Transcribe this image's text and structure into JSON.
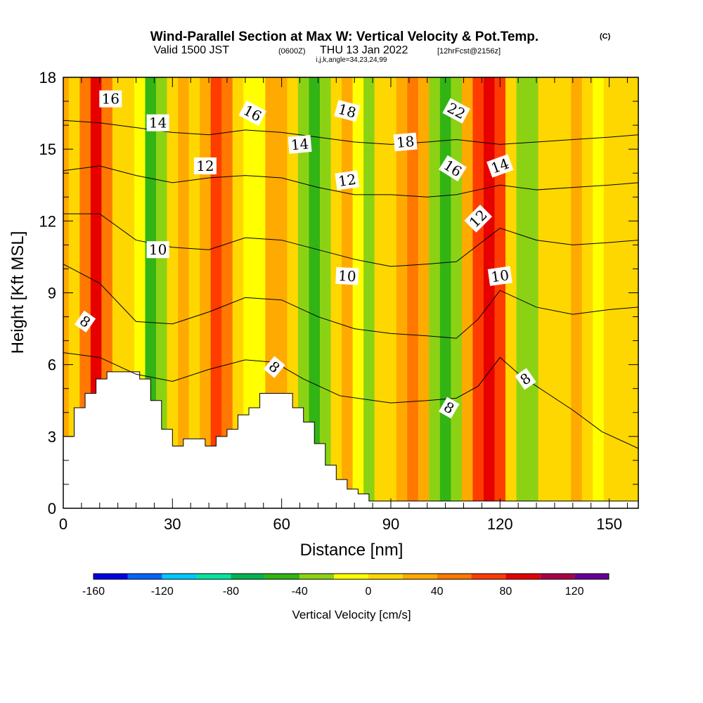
{
  "chart_data": {
    "type": "heatmap",
    "title": "Wind-Parallel Section at Max W: Vertical Velocity & Pot.Temp.",
    "title_mark": "(C)",
    "subtitle_parts": [
      "Valid 1500 JST",
      "(0600Z)",
      "THU 13 Jan 2022",
      "[12hrFcst@2156z]"
    ],
    "subtitle2": "i,j,k,angle=34,23,24,99",
    "xlabel": "Distance [nm]",
    "ylabel": "Height [Kft MSL]",
    "xlim": [
      0,
      158
    ],
    "ylim": [
      0,
      18
    ],
    "x_ticks": [
      0,
      30,
      60,
      90,
      120,
      150
    ],
    "y_ticks": [
      0,
      3,
      6,
      9,
      12,
      15,
      18
    ],
    "colorbar": {
      "label": "Vertical Velocity [cm/s]",
      "tick_values": [
        -160,
        -120,
        -80,
        -40,
        0,
        40,
        80,
        120
      ],
      "tick_labels": [
        "-160",
        "-120",
        "-80",
        "-40",
        "0",
        "40",
        "80",
        "120"
      ],
      "bins": [
        -160,
        -140,
        -120,
        -100,
        -80,
        -60,
        -40,
        -20,
        0,
        20,
        40,
        60,
        80,
        100,
        120,
        140
      ],
      "colors": [
        "#0000e6",
        "#0064ff",
        "#00c8ff",
        "#00e6a0",
        "#00b450",
        "#32b414",
        "#8cd214",
        "#ffff00",
        "#ffd700",
        "#ffaa00",
        "#ff7800",
        "#ff3c00",
        "#e60000",
        "#aa0046",
        "#640096"
      ]
    },
    "velocity_columns": [
      {
        "x": 0,
        "w": 20
      },
      {
        "x": 3,
        "w": 10
      },
      {
        "x": 6,
        "w": 50
      },
      {
        "x": 9,
        "w": 85
      },
      {
        "x": 12,
        "w": 40
      },
      {
        "x": 15,
        "w": 10
      },
      {
        "x": 18,
        "w": 5
      },
      {
        "x": 21,
        "w": -20
      },
      {
        "x": 24,
        "w": -50
      },
      {
        "x": 27,
        "w": -30
      },
      {
        "x": 30,
        "w": 10
      },
      {
        "x": 33,
        "w": 20
      },
      {
        "x": 36,
        "w": 10
      },
      {
        "x": 39,
        "w": 30
      },
      {
        "x": 42,
        "w": 65
      },
      {
        "x": 45,
        "w": 50
      },
      {
        "x": 48,
        "w": 10
      },
      {
        "x": 51,
        "w": -20
      },
      {
        "x": 54,
        "w": -10
      },
      {
        "x": 57,
        "w": 20
      },
      {
        "x": 60,
        "w": 30
      },
      {
        "x": 63,
        "w": 10
      },
      {
        "x": 66,
        "w": -30
      },
      {
        "x": 69,
        "w": -60
      },
      {
        "x": 72,
        "w": -30
      },
      {
        "x": 75,
        "w": 10
      },
      {
        "x": 78,
        "w": 30
      },
      {
        "x": 81,
        "w": -10
      },
      {
        "x": 84,
        "w": -30
      },
      {
        "x": 87,
        "w": 5
      },
      {
        "x": 90,
        "w": 10
      },
      {
        "x": 93,
        "w": 30
      },
      {
        "x": 96,
        "w": 45
      },
      {
        "x": 99,
        "w": 20
      },
      {
        "x": 102,
        "w": -40
      },
      {
        "x": 105,
        "w": -60
      },
      {
        "x": 108,
        "w": -30
      },
      {
        "x": 111,
        "w": 20
      },
      {
        "x": 114,
        "w": 60
      },
      {
        "x": 117,
        "w": 95
      },
      {
        "x": 120,
        "w": 60
      },
      {
        "x": 123,
        "w": 10
      },
      {
        "x": 126,
        "w": -40
      },
      {
        "x": 129,
        "w": -30
      },
      {
        "x": 132,
        "w": 5
      },
      {
        "x": 135,
        "w": 15
      },
      {
        "x": 138,
        "w": 10
      },
      {
        "x": 141,
        "w": 25
      },
      {
        "x": 144,
        "w": 15
      },
      {
        "x": 147,
        "w": -5
      },
      {
        "x": 150,
        "w": 5
      },
      {
        "x": 153,
        "w": 10
      },
      {
        "x": 156,
        "w": 15
      },
      {
        "x": 158,
        "w": 10
      }
    ],
    "terrain": [
      {
        "x": 0,
        "z": 3
      },
      {
        "x": 3,
        "z": 4.2
      },
      {
        "x": 6,
        "z": 4.8
      },
      {
        "x": 9,
        "z": 5.4
      },
      {
        "x": 12,
        "z": 5.7
      },
      {
        "x": 18,
        "z": 5.7
      },
      {
        "x": 21,
        "z": 5.4
      },
      {
        "x": 24,
        "z": 4.5
      },
      {
        "x": 27,
        "z": 3.3
      },
      {
        "x": 30,
        "z": 2.6
      },
      {
        "x": 33,
        "z": 2.9
      },
      {
        "x": 36,
        "z": 2.9
      },
      {
        "x": 39,
        "z": 2.6
      },
      {
        "x": 42,
        "z": 3
      },
      {
        "x": 45,
        "z": 3.3
      },
      {
        "x": 48,
        "z": 3.9
      },
      {
        "x": 51,
        "z": 4.2
      },
      {
        "x": 54,
        "z": 4.8
      },
      {
        "x": 60,
        "z": 4.8
      },
      {
        "x": 63,
        "z": 4.2
      },
      {
        "x": 66,
        "z": 3.6
      },
      {
        "x": 69,
        "z": 2.7
      },
      {
        "x": 72,
        "z": 1.8
      },
      {
        "x": 75,
        "z": 1.2
      },
      {
        "x": 78,
        "z": 0.8
      },
      {
        "x": 81,
        "z": 0.6
      },
      {
        "x": 84,
        "z": 0.3
      },
      {
        "x": 158,
        "z": 0.3
      }
    ],
    "isentropes": [
      {
        "value": 8,
        "points": [
          [
            0,
            6.5
          ],
          [
            10,
            6.3
          ],
          [
            20,
            5.6
          ],
          [
            30,
            5.3
          ],
          [
            40,
            5.8
          ],
          [
            50,
            6.2
          ],
          [
            58,
            6.1
          ],
          [
            66,
            5.4
          ],
          [
            76,
            4.7
          ],
          [
            90,
            4.4
          ],
          [
            100,
            4.5
          ],
          [
            108,
            4.6
          ],
          [
            114,
            5.1
          ],
          [
            120,
            6.3
          ],
          [
            126,
            5.5
          ],
          [
            132,
            4.9
          ],
          [
            140,
            4.1
          ],
          [
            148,
            3.2
          ],
          [
            158,
            2.5
          ]
        ]
      },
      {
        "value": 10,
        "points": [
          [
            0,
            10.2
          ],
          [
            10,
            9.4
          ],
          [
            20,
            7.8
          ],
          [
            30,
            7.7
          ],
          [
            40,
            8.2
          ],
          [
            50,
            8.8
          ],
          [
            60,
            8.7
          ],
          [
            70,
            8
          ],
          [
            80,
            7.5
          ],
          [
            90,
            7.3
          ],
          [
            100,
            7.2
          ],
          [
            108,
            7.1
          ],
          [
            114,
            7.9
          ],
          [
            120,
            9.1
          ],
          [
            130,
            8.4
          ],
          [
            140,
            8.1
          ],
          [
            150,
            8.3
          ],
          [
            158,
            8.4
          ]
        ]
      },
      {
        "value": 12,
        "points": [
          [
            0,
            12.3
          ],
          [
            10,
            12.3
          ],
          [
            20,
            11.2
          ],
          [
            30,
            10.9
          ],
          [
            40,
            10.8
          ],
          [
            50,
            11.3
          ],
          [
            60,
            11.2
          ],
          [
            70,
            10.8
          ],
          [
            80,
            10.4
          ],
          [
            90,
            10.1
          ],
          [
            100,
            10.2
          ],
          [
            108,
            10.3
          ],
          [
            114,
            11
          ],
          [
            120,
            11.7
          ],
          [
            130,
            11.2
          ],
          [
            140,
            11
          ],
          [
            150,
            11.1
          ],
          [
            158,
            11.2
          ]
        ]
      },
      {
        "value": 14,
        "points": [
          [
            0,
            14.1
          ],
          [
            10,
            14.3
          ],
          [
            20,
            13.9
          ],
          [
            30,
            13.6
          ],
          [
            40,
            13.8
          ],
          [
            50,
            13.9
          ],
          [
            60,
            13.8
          ],
          [
            70,
            13.4
          ],
          [
            80,
            13.1
          ],
          [
            90,
            13.1
          ],
          [
            100,
            13
          ],
          [
            108,
            13.1
          ],
          [
            114,
            13.3
          ],
          [
            120,
            13.5
          ],
          [
            130,
            13.3
          ],
          [
            140,
            13.4
          ],
          [
            150,
            13.5
          ],
          [
            158,
            13.6
          ]
        ]
      },
      {
        "value": 16,
        "points": [
          [
            0,
            16.2
          ],
          [
            10,
            16.1
          ],
          [
            20,
            15.9
          ],
          [
            30,
            15.7
          ],
          [
            40,
            15.6
          ],
          [
            50,
            15.8
          ],
          [
            60,
            15.7
          ],
          [
            70,
            15.5
          ],
          [
            80,
            15.3
          ],
          [
            90,
            15.2
          ],
          [
            100,
            15.3
          ],
          [
            108,
            15.4
          ],
          [
            114,
            15.3
          ],
          [
            120,
            15.2
          ],
          [
            130,
            15.3
          ],
          [
            140,
            15.4
          ],
          [
            150,
            15.5
          ],
          [
            158,
            15.6
          ]
        ]
      }
    ],
    "contour_labels": [
      {
        "text": "16",
        "x": 13,
        "y": 17.1,
        "angle": 0
      },
      {
        "text": "14",
        "x": 26,
        "y": 16.1,
        "angle": 0
      },
      {
        "text": "12",
        "x": 39,
        "y": 14.3,
        "angle": 0
      },
      {
        "text": "16",
        "x": 52,
        "y": 16.5,
        "angle": 28
      },
      {
        "text": "14",
        "x": 65,
        "y": 15.2,
        "angle": -5
      },
      {
        "text": "18",
        "x": 78,
        "y": 16.6,
        "angle": 15
      },
      {
        "text": "12",
        "x": 78,
        "y": 13.7,
        "angle": -8
      },
      {
        "text": "18",
        "x": 94,
        "y": 15.3,
        "angle": -5
      },
      {
        "text": "22",
        "x": 108,
        "y": 16.6,
        "angle": 28
      },
      {
        "text": "16",
        "x": 107,
        "y": 14.2,
        "angle": 32
      },
      {
        "text": "14",
        "x": 120,
        "y": 14.3,
        "angle": -20
      },
      {
        "text": "12",
        "x": 114,
        "y": 12.1,
        "angle": -45
      },
      {
        "text": "10",
        "x": 26,
        "y": 10.8,
        "angle": 0
      },
      {
        "text": "10",
        "x": 78,
        "y": 9.7,
        "angle": 3
      },
      {
        "text": "10",
        "x": 120,
        "y": 9.7,
        "angle": -8
      },
      {
        "text": "8",
        "x": 6,
        "y": 7.8,
        "angle": 35
      },
      {
        "text": "8",
        "x": 58,
        "y": 5.9,
        "angle": 40
      },
      {
        "text": "8",
        "x": 106,
        "y": 4.2,
        "angle": 30
      },
      {
        "text": "8",
        "x": 127,
        "y": 5.4,
        "angle": -35
      }
    ]
  }
}
